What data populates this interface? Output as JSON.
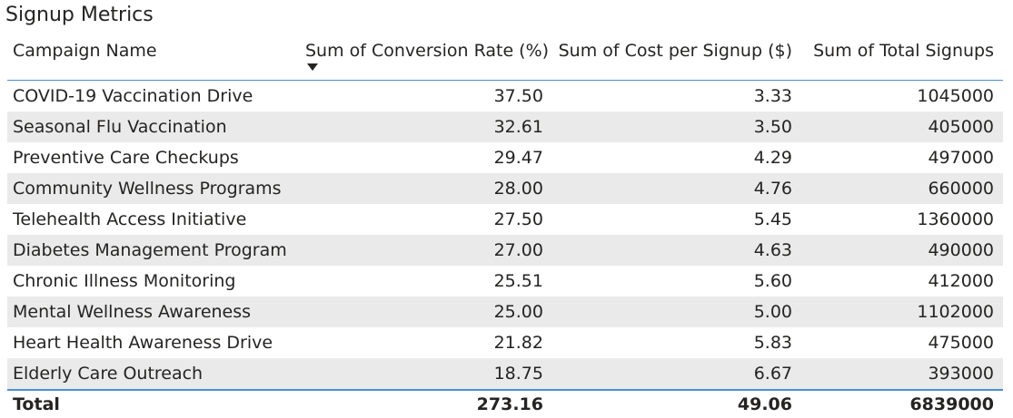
{
  "title": "Signup Metrics",
  "chart_data": {
    "type": "table",
    "columns": [
      "Campaign Name",
      "Sum of Conversion Rate (%)",
      "Sum of Cost per Signup ($)",
      "Sum of Total Signups"
    ],
    "sorted_column": "Sum of Conversion Rate (%)",
    "sort_direction": "descending",
    "rows": [
      [
        "COVID-19 Vaccination Drive",
        "37.50",
        "3.33",
        "1045000"
      ],
      [
        "Seasonal Flu Vaccination",
        "32.61",
        "3.50",
        "405000"
      ],
      [
        "Preventive Care Checkups",
        "29.47",
        "4.29",
        "497000"
      ],
      [
        "Community Wellness Programs",
        "28.00",
        "4.76",
        "660000"
      ],
      [
        "Telehealth Access Initiative",
        "27.50",
        "5.45",
        "1360000"
      ],
      [
        "Diabetes Management Program",
        "27.00",
        "4.63",
        "490000"
      ],
      [
        "Chronic Illness Monitoring",
        "25.51",
        "5.60",
        "412000"
      ],
      [
        "Mental Wellness Awareness",
        "25.00",
        "5.00",
        "1102000"
      ],
      [
        "Heart Health Awareness Drive",
        "21.82",
        "5.83",
        "475000"
      ],
      [
        "Elderly Care Outreach",
        "18.75",
        "6.67",
        "393000"
      ]
    ],
    "total": [
      "Total",
      "273.16",
      "49.06",
      "6839000"
    ]
  },
  "colors": {
    "accent": "#4a90d9",
    "alt_row": "#eaeaea",
    "text": "#252423"
  },
  "icons": {
    "sort": "sort-descending-icon"
  }
}
